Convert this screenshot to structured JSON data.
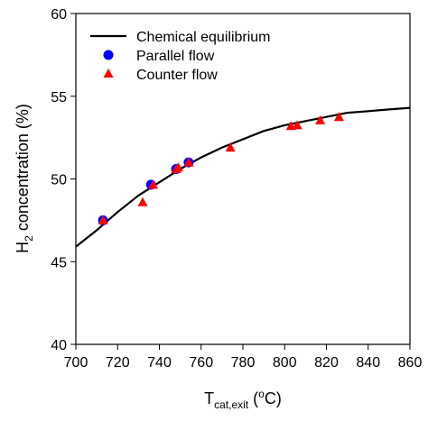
{
  "chart_data": {
    "type": "scatter",
    "title": "",
    "xlabel": {
      "main": "T",
      "sub": "cat,exit",
      "unit_open": " (",
      "unit_sup": "o",
      "unit_close": "C)"
    },
    "ylabel": {
      "main": "H",
      "sub": "2",
      "rest": " concentration (%)"
    },
    "xlim": [
      700,
      860
    ],
    "ylim": [
      40,
      60
    ],
    "xticks": [
      700,
      720,
      740,
      760,
      780,
      800,
      820,
      840,
      860
    ],
    "yticks": [
      40,
      45,
      50,
      55,
      60
    ],
    "grid": false,
    "legend_position": "top-left",
    "series": [
      {
        "name": "Chemical equilibrium",
        "kind": "line",
        "color": "#000000",
        "x": [
          700,
          710,
          720,
          730,
          740,
          750,
          760,
          770,
          780,
          790,
          800,
          810,
          820,
          830,
          840,
          850,
          860
        ],
        "y": [
          45.9,
          46.9,
          48.0,
          49.0,
          49.8,
          50.6,
          51.3,
          51.9,
          52.4,
          52.9,
          53.25,
          53.5,
          53.75,
          54.0,
          54.1,
          54.2,
          54.3
        ]
      },
      {
        "name": "Parallel flow",
        "kind": "scatter",
        "marker": "circle",
        "color": "#0000ff",
        "x": [
          713,
          736,
          748,
          754
        ],
        "y": [
          47.5,
          49.65,
          50.6,
          51.0
        ]
      },
      {
        "name": "Counter flow",
        "kind": "scatter",
        "marker": "triangle",
        "color": "#ff0000",
        "x": [
          713,
          732,
          737,
          748,
          749,
          754,
          774,
          803,
          806,
          817,
          826
        ],
        "y": [
          47.5,
          48.6,
          49.65,
          50.6,
          50.7,
          51.0,
          51.9,
          53.2,
          53.25,
          53.55,
          53.75
        ]
      }
    ]
  }
}
